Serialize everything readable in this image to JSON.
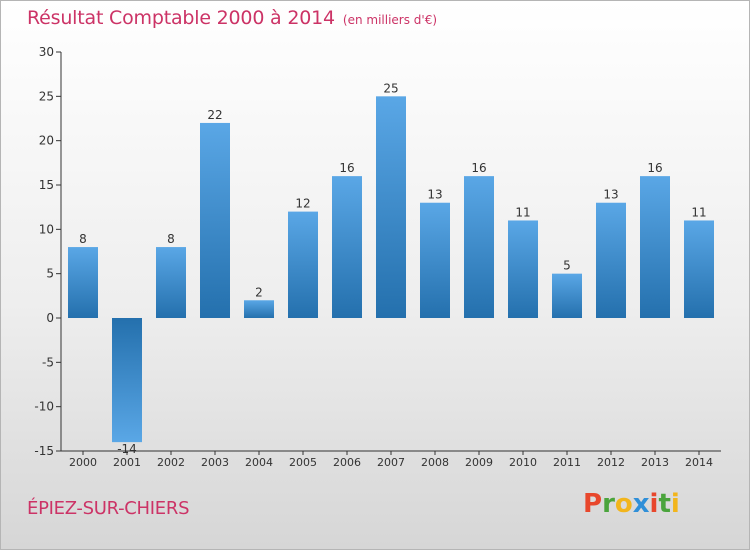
{
  "title": "Résultat Comptable 2000 à 2014",
  "subtitle": "(en milliers d'€)",
  "commune": "ÉPIEZ-SUR-CHIERS",
  "brand": {
    "text": "Proxiti",
    "letters": [
      {
        "ch": "P",
        "color": "#e8472c"
      },
      {
        "ch": "r",
        "color": "#4aa43c"
      },
      {
        "ch": "o",
        "color": "#f2b51c"
      },
      {
        "ch": "x",
        "color": "#2f8fd8"
      },
      {
        "ch": "i",
        "color": "#e8472c"
      },
      {
        "ch": "t",
        "color": "#4aa43c"
      },
      {
        "ch": "i",
        "color": "#f2b51c"
      }
    ]
  },
  "colors": {
    "bar_top": "#5aa7e6",
    "bar_bottom": "#2470ad",
    "text": "#cc3366",
    "axis": "#333333"
  },
  "chart_data": {
    "type": "bar",
    "title": "Résultat Comptable 2000 à 2014",
    "subtitle": "(en milliers d'€)",
    "xlabel": "",
    "ylabel": "",
    "categories": [
      "2000",
      "2001",
      "2002",
      "2003",
      "2004",
      "2005",
      "2006",
      "2007",
      "2008",
      "2009",
      "2010",
      "2011",
      "2012",
      "2013",
      "2014"
    ],
    "values": [
      8,
      -14,
      8,
      22,
      2,
      12,
      16,
      25,
      13,
      16,
      11,
      5,
      13,
      16,
      11
    ],
    "data_labels": [
      "8",
      "-14",
      "8",
      "22",
      "2",
      "12",
      "16",
      "25",
      "13",
      "16",
      "11",
      "5",
      "13",
      "16",
      "11"
    ],
    "ylim": [
      -15,
      30
    ],
    "yticks": [
      -15,
      -10,
      -5,
      0,
      5,
      10,
      15,
      20,
      25,
      30
    ],
    "ytick_labels": [
      "-15",
      "-10",
      "-5",
      "0",
      "5",
      "10",
      "15",
      "20",
      "25",
      "30"
    ],
    "grid": false,
    "legend": "none"
  }
}
